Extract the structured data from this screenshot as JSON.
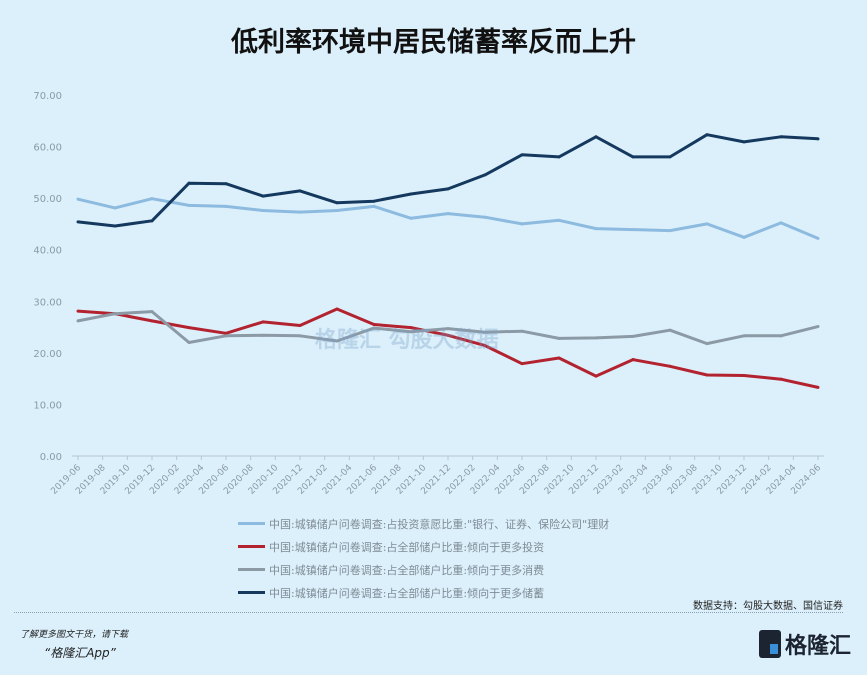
{
  "title": "低利率环境中居民储蓄率反而上升",
  "chart_data": {
    "type": "line",
    "title": "低利率环境中居民储蓄率反而上升",
    "xlabel": "",
    "ylabel": "",
    "ylim": [
      0,
      70
    ],
    "yticks": [
      "0.00",
      "10.00",
      "20.00",
      "30.00",
      "40.00",
      "50.00",
      "60.00",
      "70.00"
    ],
    "xticks": [
      "2019-06",
      "2019-08",
      "2019-10",
      "2019-12",
      "2020-02",
      "2020-04",
      "2020-06",
      "2020-08",
      "2020-10",
      "2020-12",
      "2021-02",
      "2021-04",
      "2021-06",
      "2021-08",
      "2021-10",
      "2021-12",
      "2022-02",
      "2022-04",
      "2022-06",
      "2022-08",
      "2022-10",
      "2022-12",
      "2023-02",
      "2023-04",
      "2023-06",
      "2023-08",
      "2023-10",
      "2023-12",
      "2024-02",
      "2024-04",
      "2024-06"
    ],
    "x": [
      "2019-06",
      "2019-09",
      "2019-12",
      "2020-03",
      "2020-06",
      "2020-09",
      "2020-12",
      "2021-03",
      "2021-06",
      "2021-09",
      "2021-12",
      "2022-03",
      "2022-06",
      "2022-09",
      "2022-12",
      "2023-03",
      "2023-06",
      "2023-09",
      "2023-12",
      "2024-03",
      "2024-06"
    ],
    "grid": false,
    "legend_position": "bottom",
    "series": [
      {
        "name": "中国:城镇储户问卷调查:占投资意愿比重:\"银行、证券、保险公司\"理财",
        "color": "#8dbadf",
        "values": [
          49.8,
          48.1,
          49.9,
          48.6,
          48.4,
          47.6,
          47.3,
          47.6,
          48.4,
          46.1,
          47.0,
          46.3,
          45.0,
          45.7,
          44.1,
          43.9,
          43.7,
          45.0,
          42.4,
          45.2,
          42.2
        ]
      },
      {
        "name": "中国:城镇储户问卷调查:占全部储户比重:倾向于更多投资",
        "color": "#b3232f",
        "values": [
          28.1,
          27.6,
          26.2,
          24.9,
          23.8,
          26.0,
          25.3,
          28.5,
          25.5,
          24.9,
          23.4,
          21.4,
          17.9,
          19.0,
          15.5,
          18.7,
          17.4,
          15.7,
          15.6,
          14.9,
          13.3
        ]
      },
      {
        "name": "中国:城镇储户问卷调查:占全部储户比重:倾向于更多消费",
        "color": "#8c9aa6",
        "values": [
          26.2,
          27.6,
          28.0,
          22.0,
          23.3,
          23.4,
          23.3,
          22.3,
          24.8,
          24.1,
          24.7,
          24.0,
          24.2,
          22.8,
          22.9,
          23.2,
          24.4,
          21.8,
          23.3,
          23.3,
          25.1
        ]
      },
      {
        "name": "中国:城镇储户问卷调查:占全部储户比重:倾向于更多储蓄",
        "color": "#15395e",
        "values": [
          45.4,
          44.6,
          45.6,
          52.9,
          52.8,
          50.4,
          51.4,
          49.1,
          49.4,
          50.8,
          51.8,
          54.5,
          58.4,
          58.0,
          61.9,
          58.0,
          58.0,
          62.3,
          60.9,
          61.9,
          61.5
        ]
      }
    ]
  },
  "source": "数据支持：勾股大数据、国信证券",
  "promo": {
    "line1": "了解更多图文干货，请下载",
    "line2": "“格隆汇App”"
  },
  "logo": "格隆汇",
  "watermark": "格隆汇 勾股大数据"
}
